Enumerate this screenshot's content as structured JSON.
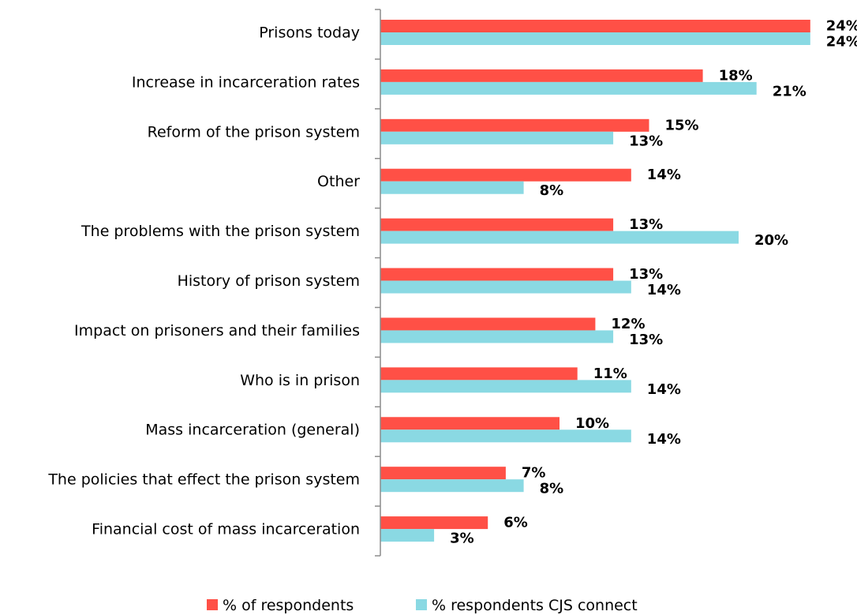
{
  "chart_data": {
    "type": "bar",
    "orientation": "horizontal",
    "categories": [
      "Prisons today",
      "Increase in incarceration rates",
      "Reform of the prison system",
      "Other",
      "The problems with the prison system",
      "History of prison system",
      "Impact on prisoners and their families",
      "Who is in prison",
      "Mass incarceration (general)",
      "The policies that effect the prison system",
      "Financial cost of mass incarceration"
    ],
    "series": [
      {
        "name": "% of respondents",
        "color": "#ff5046",
        "values": [
          24,
          18,
          15,
          14,
          13,
          13,
          12,
          11,
          10,
          7,
          6
        ],
        "labels": [
          "24%",
          "18%",
          "15%",
          "14%",
          "13%",
          "13%",
          "12%",
          "11%",
          "10%",
          "7%",
          "6%"
        ]
      },
      {
        "name": "% respondents CJS connect",
        "color": "#8ad9e3",
        "values": [
          24,
          21,
          13,
          8,
          20,
          14,
          13,
          14,
          14,
          8,
          3
        ],
        "labels": [
          "24%",
          "21%",
          "13%",
          "8%",
          "20%",
          "14%",
          "13%",
          "14%",
          "14%",
          "8%",
          "3%"
        ]
      }
    ],
    "xlim": [
      0,
      25
    ],
    "grid": false,
    "legend_position": "bottom"
  }
}
